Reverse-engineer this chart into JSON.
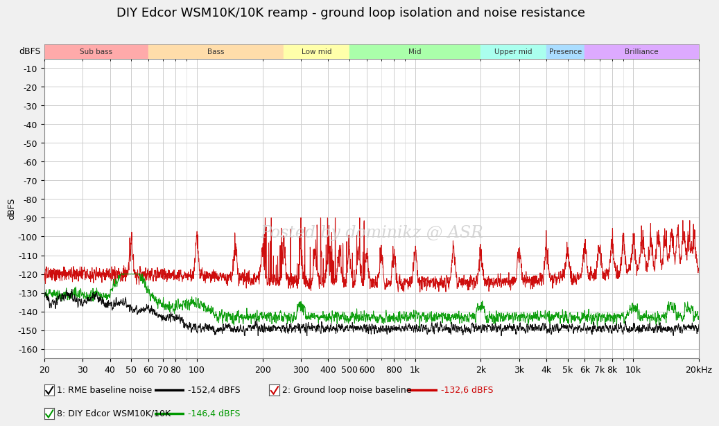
{
  "title": "DIY Edcor WSM10K/10K reamp - ground loop isolation and noise resistance",
  "ylabel": "dBFS",
  "ylim": [
    -165,
    -5
  ],
  "yticks": [
    -10,
    -20,
    -30,
    -40,
    -50,
    -60,
    -70,
    -80,
    -90,
    -100,
    -110,
    -120,
    -130,
    -140,
    -150,
    -160
  ],
  "bg_color": "#f0f0f0",
  "plot_bg_color": "#ffffff",
  "watermark": "Posted by dominikz @ ASR",
  "freq_bands": [
    {
      "name": "Sub bass",
      "xmin": 20,
      "xmax": 60,
      "color": "#ffaaaa"
    },
    {
      "name": "Bass",
      "xmin": 60,
      "xmax": 250,
      "color": "#ffddaa"
    },
    {
      "name": "Low mid",
      "xmin": 250,
      "xmax": 500,
      "color": "#ffffaa"
    },
    {
      "name": "Mid",
      "xmin": 500,
      "xmax": 2000,
      "color": "#aaffaa"
    },
    {
      "name": "Upper mid",
      "xmin": 2000,
      "xmax": 4000,
      "color": "#aaffee"
    },
    {
      "name": "Presence",
      "xmin": 4000,
      "xmax": 6000,
      "color": "#aaddff"
    },
    {
      "name": "Brilliance",
      "xmin": 6000,
      "xmax": 20000,
      "color": "#ddaaff"
    }
  ],
  "legend": [
    {
      "label": "1: RME baseline noise",
      "color": "#000000",
      "value": "-152,4 dBFS"
    },
    {
      "label": "2: Ground loop noise baseline",
      "color": "#cc0000",
      "value": "-132,6 dBFS"
    },
    {
      "label": "8: DIY Edcor WSM10K/10K",
      "color": "#009900",
      "value": "-146,4 dBFS"
    }
  ],
  "tick_positions": [
    20,
    30,
    40,
    50,
    60,
    70,
    80,
    100,
    200,
    300,
    400,
    500,
    600,
    800,
    1000,
    2000,
    3000,
    4000,
    5000,
    6000,
    7000,
    8000,
    10000,
    20000
  ],
  "tick_labels": [
    "20",
    "30",
    "40",
    "50",
    "60",
    "70",
    "80",
    "100",
    "200",
    "300",
    "400",
    "500",
    "600",
    "800",
    "1k",
    "2k",
    "3k",
    "4k",
    "5k",
    "6k",
    "7k",
    "8k",
    "10k",
    "20kHz"
  ],
  "noise_seed": 12345
}
